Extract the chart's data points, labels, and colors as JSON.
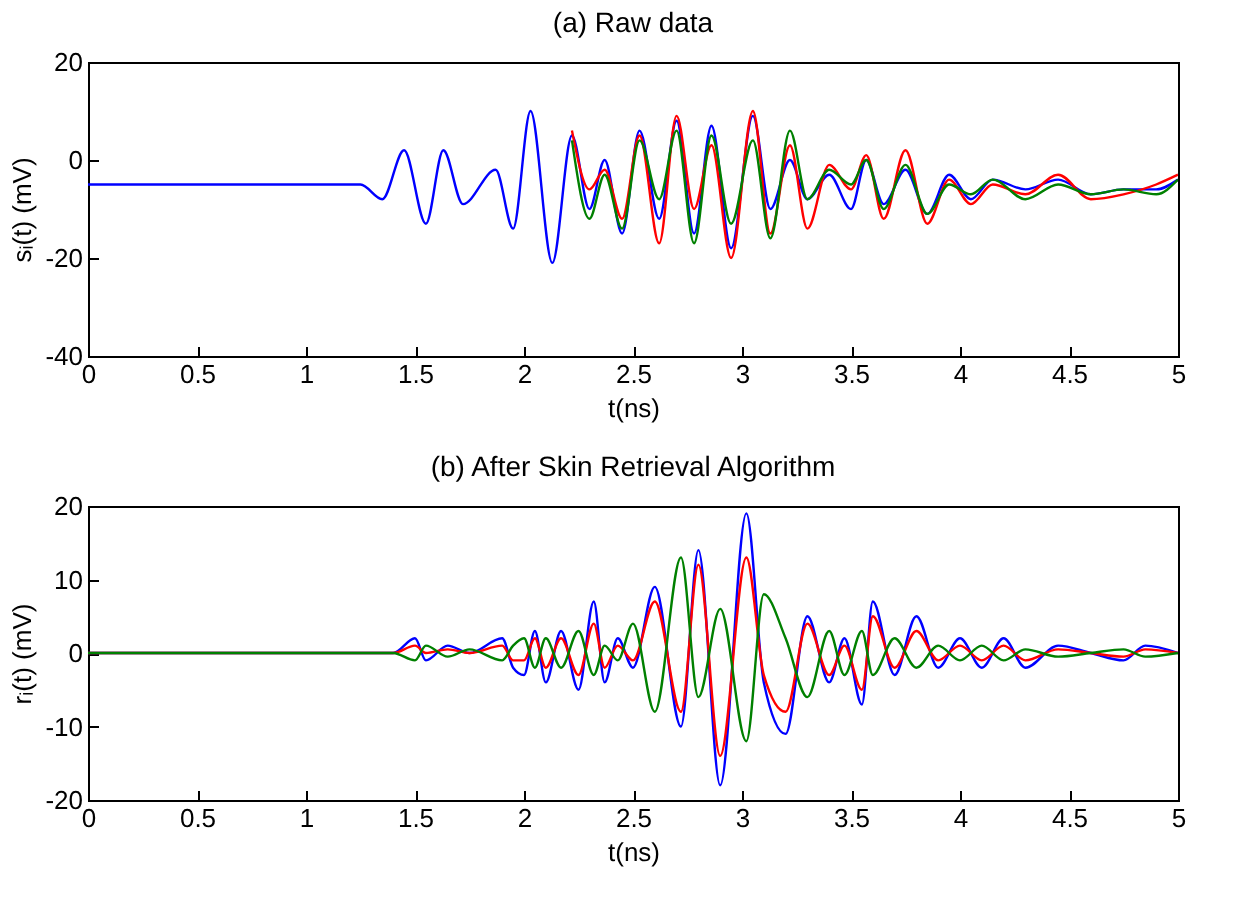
{
  "chart_data": [
    {
      "type": "line",
      "title": "(a) Raw data",
      "xlabel": "t(ns)",
      "ylabel": "sᵢ(t) (mV)",
      "xlim": [
        0,
        5
      ],
      "xticks": [
        0,
        0.5,
        1,
        1.5,
        2,
        2.5,
        3,
        3.5,
        4,
        4.5,
        5
      ],
      "ylim": [
        -40,
        20
      ],
      "yticks": [
        -40,
        -20,
        0,
        20
      ],
      "grid": false,
      "series": [
        {
          "color": "#0000ff",
          "x": [
            0,
            0.6,
            1.25,
            1.35,
            1.45,
            1.55,
            1.63,
            1.72,
            1.87,
            1.95,
            2.03,
            2.13,
            2.22,
            2.3,
            2.37,
            2.45,
            2.53,
            2.62,
            2.7,
            2.78,
            2.86,
            2.95,
            3.05,
            3.13,
            3.22,
            3.3,
            3.4,
            3.5,
            3.57,
            3.65,
            3.75,
            3.85,
            3.95,
            4.05,
            4.15,
            4.3,
            4.45,
            4.6,
            4.75,
            4.9,
            5
          ],
          "values": [
            -5,
            -5,
            -5,
            -8,
            2,
            -13,
            2,
            -9,
            -2,
            -14,
            10,
            -21,
            5,
            -10,
            0,
            -15,
            6,
            -12,
            8,
            -15,
            7,
            -18,
            9,
            -10,
            0,
            -8,
            -3,
            -10,
            0,
            -9,
            -2,
            -11,
            -3,
            -8,
            -4,
            -6,
            -4,
            -7,
            -6,
            -6,
            -4
          ]
        },
        {
          "color": "#ff0000",
          "x": [
            2.22,
            2.3,
            2.37,
            2.45,
            2.53,
            2.62,
            2.7,
            2.78,
            2.86,
            2.95,
            3.05,
            3.13,
            3.22,
            3.3,
            3.4,
            3.5,
            3.57,
            3.65,
            3.75,
            3.85,
            3.95,
            4.05,
            4.15,
            4.3,
            4.45,
            4.6,
            4.75,
            4.9,
            5
          ],
          "values": [
            6,
            -6,
            -2,
            -12,
            5,
            -17,
            9,
            -10,
            3,
            -20,
            10,
            -15,
            3,
            -14,
            -1,
            -6,
            1,
            -12,
            2,
            -13,
            -4,
            -9,
            -5,
            -7,
            -3,
            -8,
            -7,
            -5,
            -3
          ]
        },
        {
          "color": "#008000",
          "x": [
            2.22,
            2.3,
            2.37,
            2.45,
            2.53,
            2.62,
            2.7,
            2.78,
            2.86,
            2.95,
            3.05,
            3.13,
            3.22,
            3.3,
            3.4,
            3.5,
            3.57,
            3.65,
            3.75,
            3.85,
            3.95,
            4.05,
            4.15,
            4.3,
            4.45,
            4.6,
            4.75,
            4.9,
            5
          ],
          "values": [
            4,
            -12,
            -3,
            -14,
            4,
            -8,
            6,
            -17,
            5,
            -13,
            4,
            -16,
            6,
            -8,
            -2,
            -5,
            0,
            -10,
            -1,
            -11,
            -5,
            -7,
            -4,
            -8,
            -5,
            -7,
            -6,
            -7,
            -4
          ]
        }
      ]
    },
    {
      "type": "line",
      "title": "(b) After Skin Retrieval Algorithm",
      "xlabel": "t(ns)",
      "ylabel": "rᵢ(t) (mV)",
      "xlim": [
        0,
        5
      ],
      "xticks": [
        0,
        0.5,
        1,
        1.5,
        2,
        2.5,
        3,
        3.5,
        4,
        4.5,
        5
      ],
      "ylim": [
        -20,
        20
      ],
      "yticks": [
        -20,
        -10,
        0,
        10,
        20
      ],
      "grid": false,
      "series": [
        {
          "color": "#0000ff",
          "x": [
            0,
            1.4,
            1.5,
            1.55,
            1.65,
            1.75,
            1.9,
            1.95,
            2.0,
            2.05,
            2.1,
            2.17,
            2.25,
            2.32,
            2.37,
            2.43,
            2.5,
            2.6,
            2.72,
            2.8,
            2.9,
            3.02,
            3.1,
            3.2,
            3.3,
            3.4,
            3.47,
            3.55,
            3.6,
            3.7,
            3.8,
            3.9,
            4.0,
            4.1,
            4.2,
            4.3,
            4.45,
            4.6,
            4.75,
            4.85,
            5
          ],
          "values": [
            0,
            0,
            2,
            -1,
            1,
            0,
            2,
            -2,
            -3,
            3,
            -4,
            3,
            -5,
            7,
            -4,
            2,
            -2,
            9,
            -10,
            14,
            -18,
            19,
            -4,
            -11,
            5,
            -4,
            2,
            -7,
            7,
            -3,
            5,
            -2,
            2,
            -2,
            2,
            -2,
            1,
            0,
            -1,
            1,
            0
          ]
        },
        {
          "color": "#ff0000",
          "x": [
            0,
            1.4,
            1.5,
            1.55,
            1.65,
            1.75,
            1.9,
            1.95,
            2.0,
            2.05,
            2.1,
            2.17,
            2.25,
            2.32,
            2.37,
            2.43,
            2.5,
            2.6,
            2.72,
            2.8,
            2.9,
            3.02,
            3.1,
            3.2,
            3.3,
            3.4,
            3.47,
            3.55,
            3.6,
            3.7,
            3.8,
            3.9,
            4.0,
            4.1,
            4.2,
            4.3,
            4.45,
            4.6,
            4.75,
            4.85,
            5
          ],
          "values": [
            0,
            0,
            1,
            0,
            0.5,
            0,
            1,
            -1,
            -1,
            2,
            -2,
            2,
            -3,
            4,
            -2,
            1,
            -1,
            7,
            -8,
            12,
            -14,
            13,
            -3,
            -8,
            4,
            -3,
            1,
            -5,
            5,
            -2,
            3,
            -1,
            1,
            -1,
            1,
            -1,
            0.5,
            0,
            -0.5,
            0.5,
            0
          ]
        },
        {
          "color": "#008000",
          "x": [
            0,
            1.4,
            1.5,
            1.55,
            1.65,
            1.75,
            1.9,
            1.95,
            2.0,
            2.05,
            2.1,
            2.17,
            2.25,
            2.32,
            2.37,
            2.43,
            2.5,
            2.6,
            2.72,
            2.8,
            2.9,
            3.02,
            3.1,
            3.2,
            3.3,
            3.4,
            3.47,
            3.55,
            3.6,
            3.7,
            3.8,
            3.9,
            4.0,
            4.1,
            4.2,
            4.3,
            4.45,
            4.6,
            4.75,
            4.85,
            5
          ],
          "values": [
            0,
            0,
            -1,
            1,
            -0.5,
            0.5,
            -1,
            1,
            2,
            -2,
            2,
            -2,
            3,
            -3,
            1,
            -1,
            4,
            -8,
            13,
            -6,
            6,
            -12,
            8,
            2,
            -6,
            3,
            -3,
            3,
            -3,
            2,
            -2,
            1,
            -1,
            1,
            -1,
            0.5,
            -0.5,
            0,
            0.5,
            -0.5,
            0
          ]
        }
      ]
    }
  ]
}
